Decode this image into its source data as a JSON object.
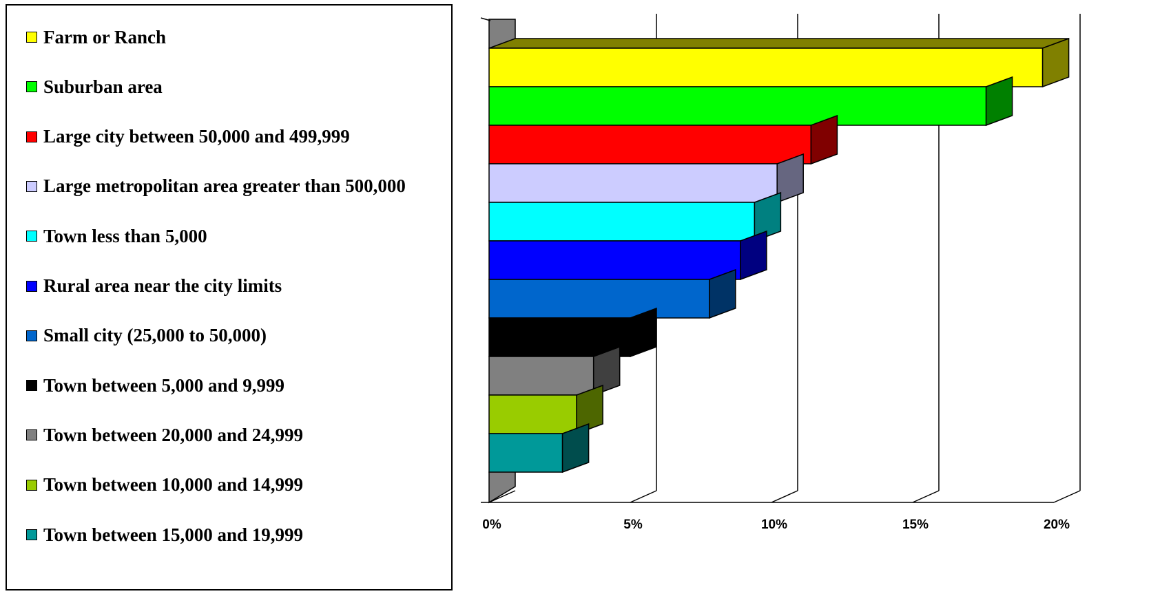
{
  "chart_data": {
    "type": "bar",
    "orientation": "horizontal",
    "title": "",
    "xlabel": "",
    "ylabel": "",
    "xlim": [
      0,
      0.2
    ],
    "x_ticks": [
      "0%",
      "5%",
      "10%",
      "15%",
      "20%"
    ],
    "grid": true,
    "legend_position": "left",
    "categories": [
      "Farm or Ranch",
      "Suburban area",
      "Large city between 50,000 and 499,999",
      "Large metropolitan area greater than 500,000",
      "Town less than 5,000",
      "Rural area near the city limits",
      "Small city (25,000 to 50,000)",
      "Town between 5,000 and 9,999",
      "Town between 20,000 and 24,999",
      "Town between 10,000 and 14,999",
      "Town between 15,000 and 19,999"
    ],
    "values": [
      0.196,
      0.176,
      0.114,
      0.102,
      0.094,
      0.089,
      0.078,
      0.05,
      0.037,
      0.031,
      0.026
    ],
    "colors": [
      "#FFFF00",
      "#00FF00",
      "#FF0000",
      "#CCCCFF",
      "#00FFFF",
      "#0000FF",
      "#0066CC",
      "#000000",
      "#808080",
      "#99CC00",
      "#009999"
    ],
    "side_colors": [
      "#808000",
      "#008000",
      "#800000",
      "#666680",
      "#008080",
      "#000080",
      "#003366",
      "#000000",
      "#404040",
      "#4D6600",
      "#004D4D"
    ]
  }
}
